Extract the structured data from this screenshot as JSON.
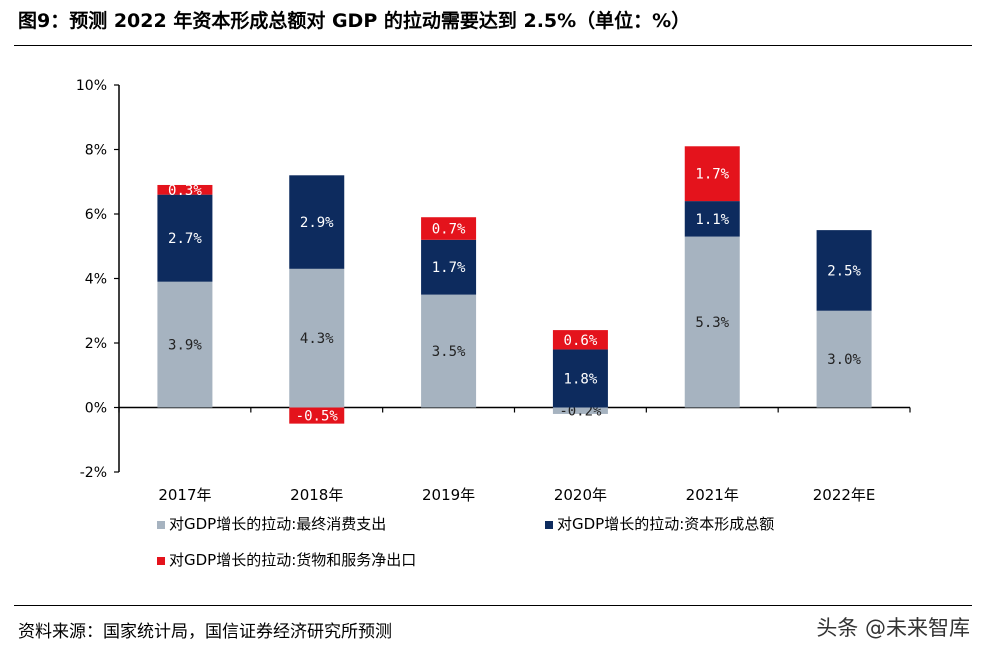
{
  "header": {
    "title": "图9：预测 2022 年资本形成总额对 GDP 的拉动需要达到 2.5%（单位：%）"
  },
  "footer": {
    "source": "资料来源：国家统计局，国信证券经济研究所预测",
    "watermark": "头条 @未来智库"
  },
  "colors": {
    "consumption": "#a6b3c0",
    "capital": "#0d2b5e",
    "net_exports": "#e4131c"
  },
  "chart_data": {
    "type": "bar",
    "stacked": true,
    "categories": [
      "2017年",
      "2018年",
      "2019年",
      "2020年",
      "2021年",
      "2022年E"
    ],
    "series": [
      {
        "name": "对GDP增长的拉动:最终消费支出",
        "values": [
          3.9,
          4.3,
          3.5,
          -0.2,
          5.3,
          3.0
        ],
        "labels": [
          "3.9%",
          "4.3%",
          "3.5%",
          "-0.2%",
          "5.3%",
          "3.0%"
        ]
      },
      {
        "name": "对GDP增长的拉动:资本形成总额",
        "values": [
          2.7,
          2.9,
          1.7,
          1.8,
          1.1,
          2.5
        ],
        "labels": [
          "2.7%",
          "2.9%",
          "1.7%",
          "1.8%",
          "1.1%",
          "2.5%"
        ]
      },
      {
        "name": "对GDP增长的拉动:货物和服务净出口",
        "values": [
          0.3,
          -0.5,
          0.7,
          0.6,
          1.7,
          null
        ],
        "labels": [
          "0.3%",
          "-0.5%",
          "0.7%",
          "0.6%",
          "1.7%",
          null
        ]
      }
    ],
    "ylim": [
      -2,
      10
    ],
    "yticks": [
      "-2%",
      "0%",
      "2%",
      "4%",
      "6%",
      "8%",
      "10%"
    ],
    "legend_position": "bottom",
    "grid": false
  }
}
